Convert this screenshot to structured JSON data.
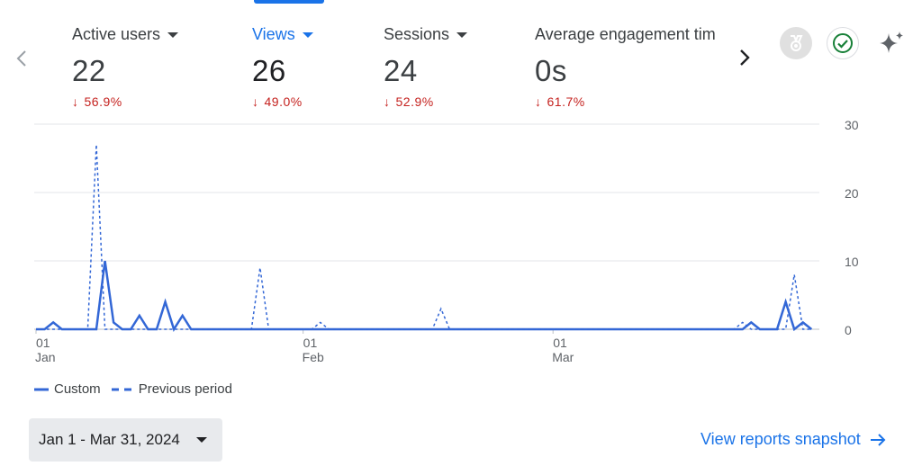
{
  "metrics": [
    {
      "label": "Active users",
      "value": "22",
      "change": "56.9%"
    },
    {
      "label": "Views",
      "value": "26",
      "change": "49.0%"
    },
    {
      "label": "Sessions",
      "value": "24",
      "change": "52.9%"
    },
    {
      "label": "Average engagement tim",
      "value": "0s",
      "change": "61.7%"
    }
  ],
  "legend": {
    "current": "Custom",
    "previous": "Previous period"
  },
  "date_range": "Jan 1 - Mar 31, 2024",
  "view_link": "View reports snapshot",
  "colors": {
    "accent": "#1a73e8",
    "negative": "#c5221f",
    "line": "#3367d6"
  },
  "chart_data": {
    "type": "line",
    "x": [
      "2024-01-01",
      "2024-01-02",
      "2024-01-03",
      "2024-01-04",
      "2024-01-05",
      "2024-01-06",
      "2024-01-07",
      "2024-01-08",
      "2024-01-09",
      "2024-01-10",
      "2024-01-11",
      "2024-01-12",
      "2024-01-13",
      "2024-01-14",
      "2024-01-15",
      "2024-01-16",
      "2024-01-17",
      "2024-01-18",
      "2024-01-19",
      "2024-01-20",
      "2024-01-21",
      "2024-01-22",
      "2024-01-23",
      "2024-01-24",
      "2024-01-25",
      "2024-01-26",
      "2024-01-27",
      "2024-01-28",
      "2024-01-29",
      "2024-01-30",
      "2024-01-31",
      "2024-02-01",
      "2024-02-02",
      "2024-02-03",
      "2024-02-04",
      "2024-02-05",
      "2024-02-06",
      "2024-02-07",
      "2024-02-08",
      "2024-02-09",
      "2024-02-10",
      "2024-02-11",
      "2024-02-12",
      "2024-02-13",
      "2024-02-14",
      "2024-02-15",
      "2024-02-16",
      "2024-02-17",
      "2024-02-18",
      "2024-02-19",
      "2024-02-20",
      "2024-02-21",
      "2024-02-22",
      "2024-02-23",
      "2024-02-24",
      "2024-02-25",
      "2024-02-26",
      "2024-02-27",
      "2024-02-28",
      "2024-02-29",
      "2024-03-01",
      "2024-03-02",
      "2024-03-03",
      "2024-03-04",
      "2024-03-05",
      "2024-03-06",
      "2024-03-07",
      "2024-03-08",
      "2024-03-09",
      "2024-03-10",
      "2024-03-11",
      "2024-03-12",
      "2024-03-13",
      "2024-03-14",
      "2024-03-15",
      "2024-03-16",
      "2024-03-17",
      "2024-03-18",
      "2024-03-19",
      "2024-03-20",
      "2024-03-21",
      "2024-03-22",
      "2024-03-23",
      "2024-03-24",
      "2024-03-25",
      "2024-03-26",
      "2024-03-27",
      "2024-03-28",
      "2024-03-29",
      "2024-03-30",
      "2024-03-31"
    ],
    "series": [
      {
        "name": "Custom",
        "style": "solid",
        "values": [
          0,
          0,
          1,
          0,
          0,
          0,
          0,
          0,
          10,
          1,
          0,
          0,
          2,
          0,
          0,
          4,
          0,
          2,
          0,
          0,
          0,
          0,
          0,
          0,
          0,
          0,
          0,
          0,
          0,
          0,
          0,
          0,
          0,
          0,
          0,
          0,
          0,
          0,
          0,
          0,
          0,
          0,
          0,
          0,
          0,
          0,
          0,
          0,
          0,
          0,
          0,
          0,
          0,
          0,
          0,
          0,
          0,
          0,
          0,
          0,
          0,
          0,
          0,
          0,
          0,
          0,
          0,
          0,
          0,
          0,
          0,
          0,
          0,
          0,
          0,
          0,
          0,
          0,
          0,
          0,
          0,
          0,
          0,
          1,
          0,
          0,
          0,
          4,
          0,
          1,
          0
        ]
      },
      {
        "name": "Previous period",
        "style": "dashed",
        "values": [
          0,
          0,
          0,
          0,
          0,
          0,
          0,
          27,
          0,
          0,
          0,
          0,
          0,
          0,
          0,
          0,
          0,
          0,
          0,
          0,
          0,
          0,
          0,
          0,
          0,
          0,
          9,
          0,
          0,
          0,
          0,
          0,
          0,
          1,
          0,
          0,
          0,
          0,
          0,
          0,
          0,
          0,
          0,
          0,
          0,
          0,
          0,
          3,
          0,
          0,
          0,
          0,
          0,
          0,
          0,
          0,
          0,
          0,
          0,
          0,
          0,
          0,
          0,
          0,
          0,
          0,
          0,
          0,
          0,
          0,
          0,
          0,
          0,
          0,
          0,
          0,
          0,
          0,
          0,
          0,
          0,
          0,
          1,
          0,
          0,
          0,
          0,
          0,
          8,
          0,
          0
        ]
      }
    ],
    "ylim": [
      0,
      30
    ],
    "yticks": [
      0,
      10,
      20,
      30
    ],
    "xticks": [
      {
        "date": "2024-01-01",
        "day": "01",
        "month": "Jan"
      },
      {
        "date": "2024-02-01",
        "day": "01",
        "month": "Feb"
      },
      {
        "date": "2024-03-01",
        "day": "01",
        "month": "Mar"
      }
    ],
    "grid": true,
    "legend_position": "bottom-left"
  }
}
